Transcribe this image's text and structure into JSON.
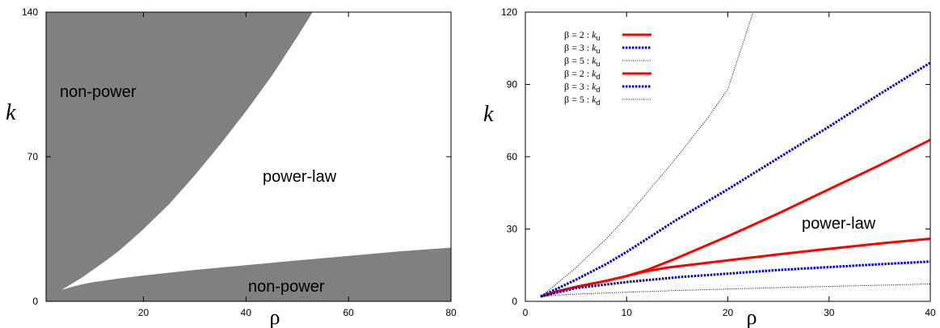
{
  "chart_data": [
    {
      "type": "area",
      "xlim": [
        1,
        80
      ],
      "ylim": [
        0,
        140
      ],
      "xticks": [
        "20",
        "40",
        "60",
        "80"
      ],
      "yticks": [
        "0",
        "70",
        "140"
      ],
      "xlabel": "ρ",
      "ylabel": "k",
      "grid": false,
      "region_color": "#808080",
      "regions": [
        {
          "label": "non-power",
          "position": "upper-left",
          "boundary": {
            "x": [
              1,
              2,
              3,
              4,
              5,
              6,
              8,
              10,
              12,
              15,
              18,
              20,
              25,
              30,
              35,
              40,
              45,
              50,
              53
            ],
            "y": [
              2,
              3,
              4,
              5.5,
              7,
              8.5,
              11.5,
              15,
              18.5,
              24,
              30.5,
              35,
              47,
              61,
              76,
              92,
              109,
              128,
              140
            ]
          }
        },
        {
          "label": "power-law",
          "position": "center"
        },
        {
          "label": "non-power",
          "position": "bottom",
          "boundary": {
            "x": [
              1,
              2,
              3,
              4,
              5,
              6,
              8,
              10,
              15,
              20,
              30,
              40,
              50,
              60,
              70,
              80
            ],
            "y": [
              2,
              3,
              4.5,
              5.5,
              6.2,
              7,
              8.2,
              9.2,
              11,
              12.5,
              15.2,
              17.5,
              19.8,
              22,
              24.2,
              26
            ]
          }
        }
      ]
    },
    {
      "type": "line",
      "xlim": [
        0,
        40
      ],
      "ylim": [
        0,
        120
      ],
      "xticks": [
        "0",
        "10",
        "20",
        "30",
        "40"
      ],
      "yticks": [
        "0",
        "30",
        "60",
        "90",
        "120"
      ],
      "xlabel": "ρ",
      "ylabel": "k",
      "grid": false,
      "legend_position": "top-left",
      "annotation": "power-law",
      "series": [
        {
          "beta": "β = 2 :",
          "k": "k",
          "sub": "u",
          "color": "#ff0000",
          "style": "solid",
          "x": [
            1.5,
            3,
            5,
            8,
            10,
            12,
            15,
            20,
            25,
            30,
            35,
            40
          ],
          "y": [
            2,
            4,
            6,
            8.5,
            10.5,
            13,
            18,
            27,
            36.5,
            46.5,
            56.5,
            67
          ]
        },
        {
          "beta": "β = 3 :",
          "k": "k",
          "sub": "u",
          "color": "#0000c8",
          "style": "dotted",
          "x": [
            1.5,
            3,
            5,
            8,
            10,
            15,
            20,
            25,
            30,
            35,
            40
          ],
          "y": [
            2,
            5,
            9,
            15.5,
            20.5,
            34,
            46.5,
            59.5,
            72.5,
            86,
            99
          ]
        },
        {
          "beta": "β = 5 :",
          "k": "k",
          "sub": "u",
          "color": "#000000",
          "style": "fine-dotted",
          "x": [
            1.5,
            3,
            5,
            8,
            10,
            12,
            15,
            18,
            20,
            22.5
          ],
          "y": [
            2,
            7,
            14,
            26,
            35,
            45,
            60,
            76,
            88,
            120
          ]
        },
        {
          "beta": "β = 2 :",
          "k": "k",
          "sub": "d",
          "color": "#ff0000",
          "style": "solid",
          "x": [
            1.5,
            3,
            5,
            8,
            10,
            12,
            14,
            16,
            20,
            25,
            30,
            35,
            40
          ],
          "y": [
            2,
            4,
            6,
            8.5,
            10.5,
            12.5,
            14,
            15,
            17,
            19.5,
            21.8,
            24,
            26
          ]
        },
        {
          "beta": "β = 3 :",
          "k": "k",
          "sub": "d",
          "color": "#0000c8",
          "style": "dotted",
          "x": [
            1.5,
            3,
            5,
            8,
            10,
            15,
            20,
            25,
            30,
            35,
            40
          ],
          "y": [
            2,
            3.5,
            5.5,
            7,
            8,
            10,
            11.5,
            13,
            14.2,
            15.4,
            16.5
          ]
        },
        {
          "beta": "β = 5 :",
          "k": "k",
          "sub": "d",
          "color": "#000000",
          "style": "fine-dotted",
          "x": [
            1.5,
            3,
            5,
            10,
            15,
            20,
            25,
            30,
            35,
            40
          ],
          "y": [
            2,
            2.5,
            3,
            3.8,
            4.5,
            5.1,
            5.7,
            6.2,
            6.7,
            7.2
          ]
        }
      ]
    }
  ]
}
